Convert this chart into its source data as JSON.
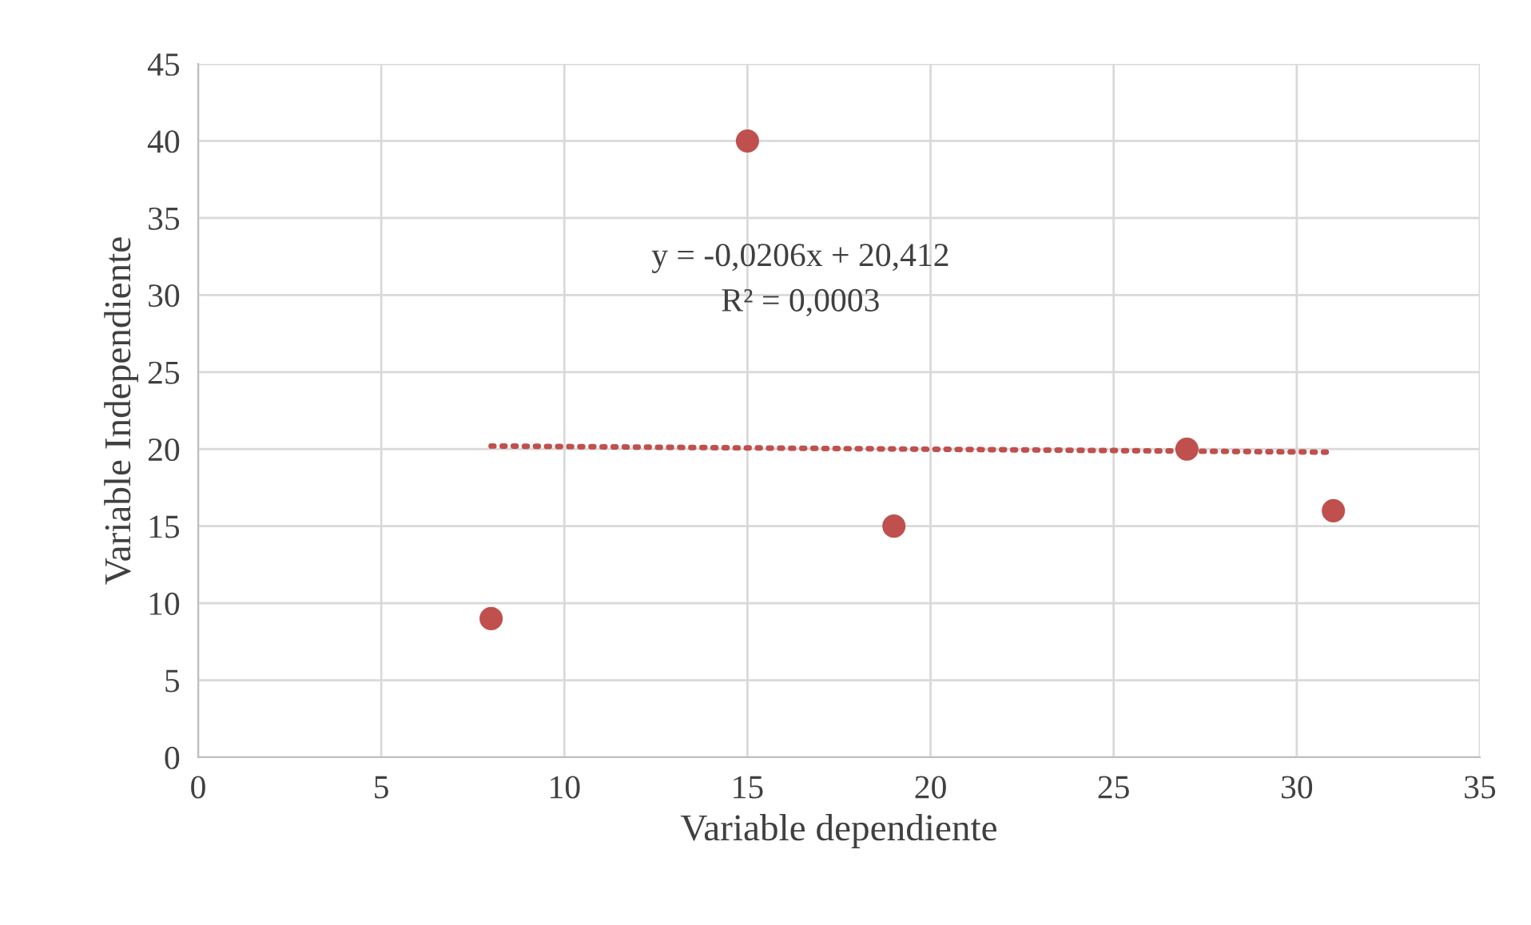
{
  "chart_data": {
    "type": "scatter",
    "xlabel": "Variable dependiente",
    "ylabel": "Variable Independiente",
    "series": [
      {
        "color": "#c0504d",
        "x": [
          8,
          15,
          19,
          27,
          31
        ],
        "values": [
          9,
          40,
          15,
          20,
          16
        ],
        "marker": "circle"
      },
      {
        "type": "line",
        "color": "#c0504d",
        "x": [
          8,
          31
        ],
        "values": [
          20.2,
          19.8
        ],
        "line_style": "dotted"
      }
    ],
    "annotations": [
      "y = -0,0206x + 20,412",
      "R² = 0,0003"
    ],
    "xlim": [
      0,
      35
    ],
    "xticks": [
      0,
      5,
      10,
      15,
      20,
      25,
      30,
      35
    ],
    "ylim": [
      0,
      45
    ],
    "yticks": [
      0,
      5,
      10,
      15,
      20,
      25,
      30,
      35,
      40,
      45
    ],
    "grid": true,
    "legend": false
  }
}
